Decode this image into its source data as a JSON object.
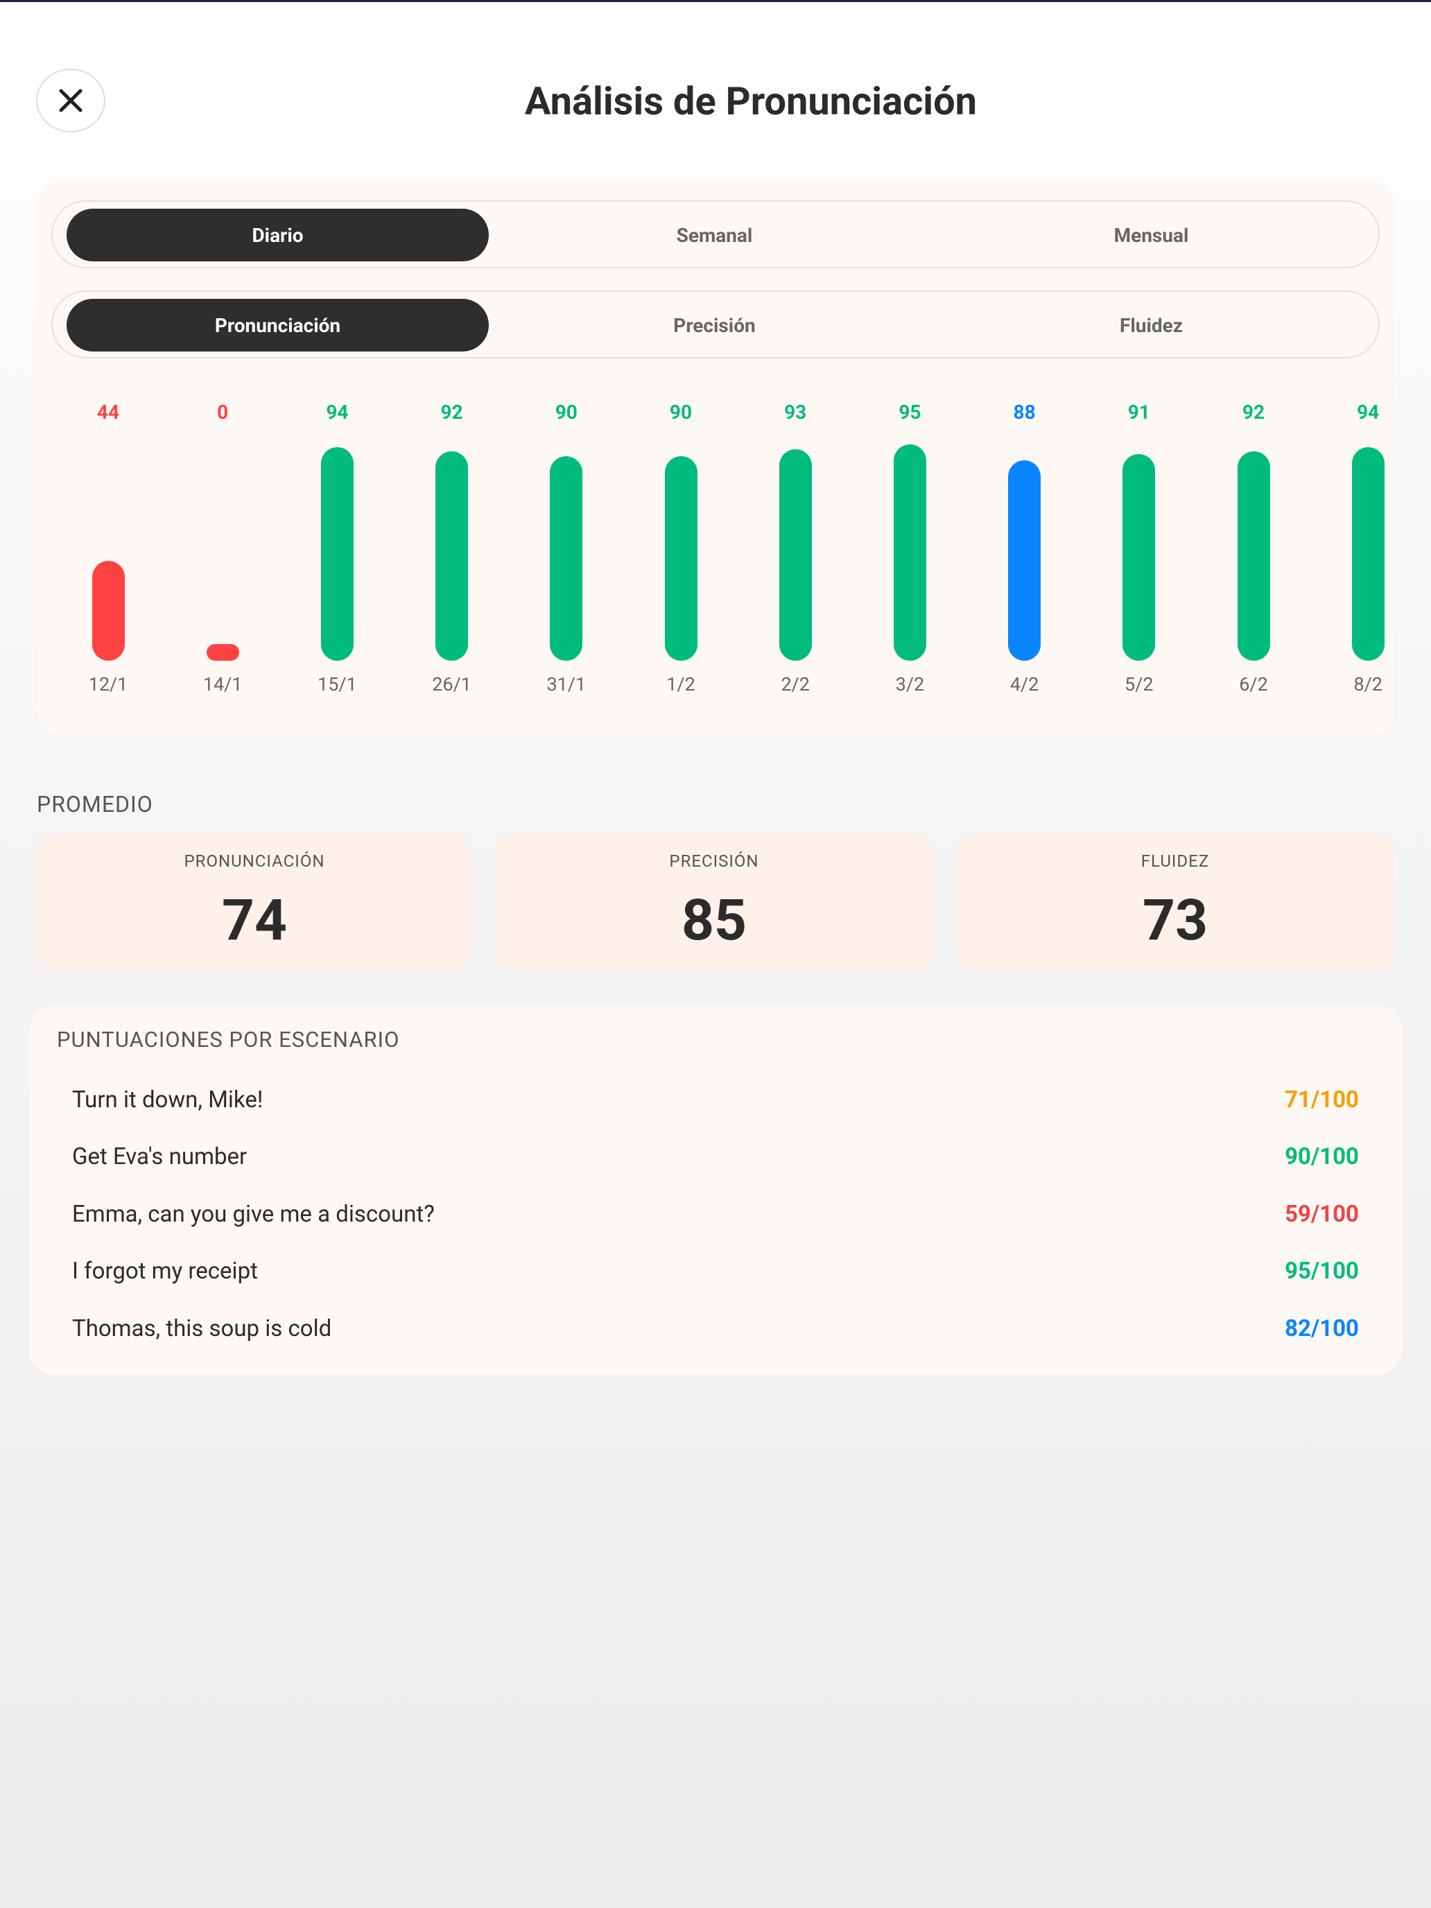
{
  "header": {
    "title": "Análisis de Pronunciación"
  },
  "period_tabs": {
    "items": [
      "Diario",
      "Semanal",
      "Mensual"
    ],
    "active": 0
  },
  "metric_tabs": {
    "items": [
      "Pronunciación",
      "Precisión",
      "Fluidez"
    ],
    "active": 0
  },
  "chart_data": {
    "type": "bar",
    "categories": [
      "12/1",
      "14/1",
      "15/1",
      "26/1",
      "31/1",
      "1/2",
      "2/2",
      "3/2",
      "4/2",
      "5/2",
      "6/2",
      "8/2"
    ],
    "values": [
      44,
      0,
      94,
      92,
      90,
      90,
      93,
      95,
      88,
      91,
      92,
      94
    ],
    "colors": [
      "#ff4343",
      "#ff4343",
      "#00bb7e",
      "#00bb7e",
      "#00bb7e",
      "#00bb7e",
      "#00bb7e",
      "#00bb7e",
      "#0a84ff",
      "#00bb7e",
      "#00bb7e",
      "#00bb7e"
    ],
    "ylim": [
      0,
      100
    ]
  },
  "averages": {
    "title": "PROMEDIO",
    "items": [
      {
        "label": "PRONUNCIACIÓN",
        "value": "74"
      },
      {
        "label": "PRECISIÓN",
        "value": "85"
      },
      {
        "label": "FLUIDEZ",
        "value": "73"
      }
    ]
  },
  "scenarios": {
    "title": "PUNTUACIONES POR ESCENARIO",
    "rows": [
      {
        "name": "Turn it down, Mike!",
        "score": "71/100",
        "color": "#f59e0b"
      },
      {
        "name": "Get Eva's number",
        "score": "90/100",
        "color": "#00bb7e"
      },
      {
        "name": "Emma, can you give me a discount?",
        "score": "59/100",
        "color": "#ef4444"
      },
      {
        "name": "I forgot my receipt",
        "score": "95/100",
        "color": "#00bb7e"
      },
      {
        "name": "Thomas, this soup is cold",
        "score": "82/100",
        "color": "#0a84ff"
      }
    ]
  }
}
